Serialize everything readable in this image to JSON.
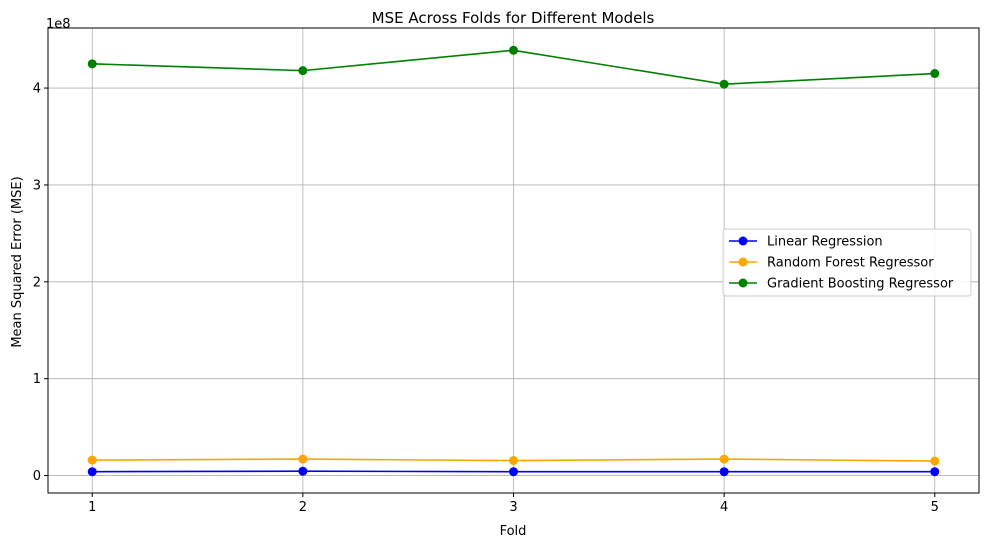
{
  "chart_data": {
    "type": "line",
    "title": "MSE Across Folds for Different Models",
    "xlabel": "Fold",
    "ylabel": "Mean Squared Error (MSE)",
    "y_offset_label": "1e8",
    "x": [
      1,
      2,
      3,
      4,
      5
    ],
    "x_tick_labels": [
      "1",
      "2",
      "3",
      "4",
      "5"
    ],
    "y_ticks": [
      0,
      1,
      2,
      3,
      4
    ],
    "y_tick_labels": [
      "0",
      "1",
      "2",
      "3",
      "4"
    ],
    "ylim": [
      -0.18,
      4.62
    ],
    "xlim": [
      0.79,
      5.21
    ],
    "y_unit_multiplier": 100000000,
    "grid": true,
    "legend_position": "center-right",
    "series": [
      {
        "name": "Linear Regression",
        "color": "#0000ff",
        "marker": "circle",
        "values": [
          0.04,
          0.045,
          0.04,
          0.04,
          0.04
        ]
      },
      {
        "name": "Random Forest Regressor",
        "color": "#ffa500",
        "marker": "circle",
        "values": [
          0.16,
          0.17,
          0.155,
          0.17,
          0.15
        ]
      },
      {
        "name": "Gradient Boosting Regressor",
        "color": "#008000",
        "marker": "circle",
        "values": [
          4.25,
          4.18,
          4.39,
          4.04,
          4.15
        ]
      }
    ]
  }
}
